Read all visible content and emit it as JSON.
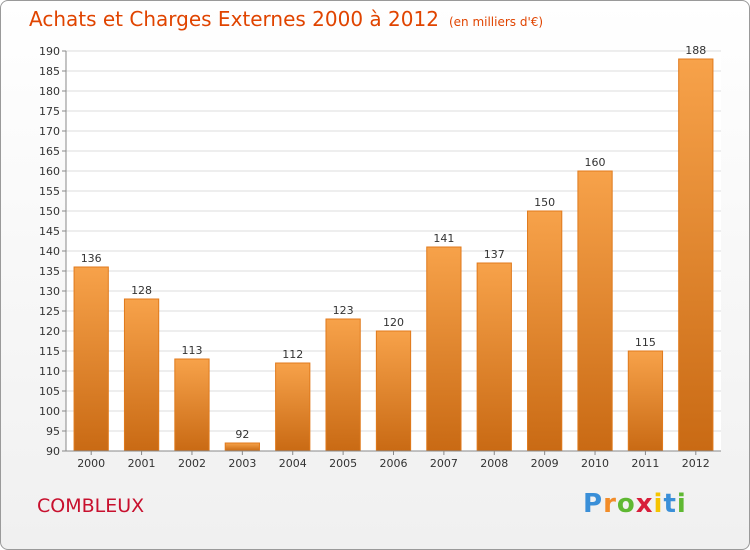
{
  "chart_data": {
    "type": "bar",
    "title": "Achats et Charges Externes 2000 à 2012",
    "subtitle": "(en milliers d'€)",
    "categories": [
      "2000",
      "2001",
      "2002",
      "2003",
      "2004",
      "2005",
      "2006",
      "2007",
      "2008",
      "2009",
      "2010",
      "2011",
      "2012"
    ],
    "values": [
      136,
      128,
      113,
      92,
      112,
      123,
      120,
      141,
      137,
      150,
      160,
      115,
      188
    ],
    "ylim": [
      90,
      190
    ],
    "yticks": [
      90,
      95,
      100,
      105,
      110,
      115,
      120,
      125,
      130,
      135,
      140,
      145,
      150,
      155,
      160,
      165,
      170,
      175,
      180,
      185,
      190
    ],
    "grid": true,
    "bar_color": "#f28c28"
  },
  "location": "COMBLEUX",
  "logo": {
    "letters": [
      "P",
      "r",
      "o",
      "x",
      "i",
      "t",
      "i"
    ],
    "colors": [
      "#3a8fd8",
      "#f28c28",
      "#5fb832",
      "#d81e3a",
      "#f5c400",
      "#3a8fd8",
      "#5fb832"
    ]
  }
}
